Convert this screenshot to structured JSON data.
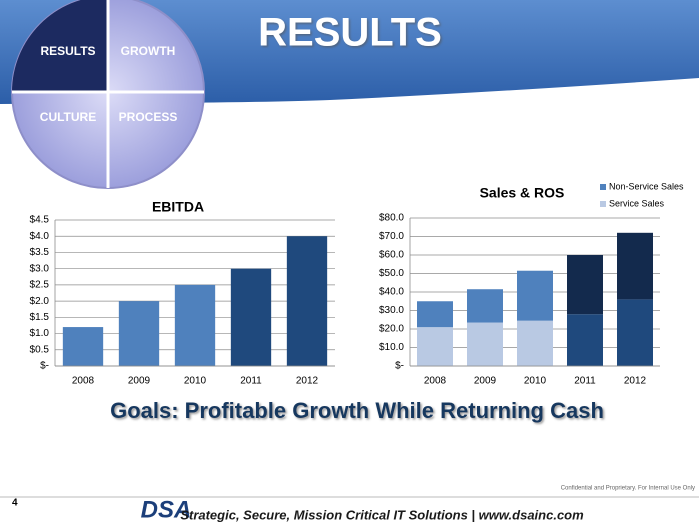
{
  "header": {
    "title": "RESULTS",
    "wheel": [
      "RESULTS",
      "GROWTH",
      "CULTURE",
      "PROCESS"
    ]
  },
  "chart_data": [
    {
      "type": "bar",
      "title": "EBITDA",
      "categories": [
        "2008",
        "2009",
        "2010",
        "2011",
        "2012"
      ],
      "values": [
        1.2,
        2.0,
        2.5,
        3.0,
        4.0
      ],
      "colors": [
        "#4f81bd",
        "#4f81bd",
        "#4f81bd",
        "#1f497d",
        "#1f497d"
      ],
      "ylim": [
        0,
        4.5
      ],
      "yticks": [
        {
          "value": 0,
          "label": "$-"
        },
        {
          "value": 0.5,
          "label": "$0.5"
        },
        {
          "value": 1,
          "label": "$1.0"
        },
        {
          "value": 1.5,
          "label": "$1.5"
        },
        {
          "value": 2,
          "label": "$2.0"
        },
        {
          "value": 2.5,
          "label": "$2.5"
        },
        {
          "value": 3,
          "label": "$3.0"
        },
        {
          "value": 3.5,
          "label": "$3.5"
        },
        {
          "value": 4,
          "label": "$4.0"
        },
        {
          "value": 4.5,
          "label": "$4.5"
        }
      ],
      "grid": true
    },
    {
      "type": "bar",
      "stacked": true,
      "title": "Sales & ROS",
      "categories": [
        "2008",
        "2009",
        "2010",
        "2011",
        "2012"
      ],
      "series": [
        {
          "name": "Service Sales",
          "color": "#b9c9e3",
          "colors": [
            "#b9c9e3",
            "#b9c9e3",
            "#b9c9e3",
            "#1f497d",
            "#1f497d"
          ],
          "values": [
            21,
            23.5,
            24.5,
            28,
            36
          ]
        },
        {
          "name": "Non-Service Sales",
          "color": "#4f81bd",
          "colors": [
            "#4f81bd",
            "#4f81bd",
            "#4f81bd",
            "#132a4d",
            "#132a4d"
          ],
          "values": [
            14,
            18,
            27,
            32,
            36
          ]
        }
      ],
      "ylim": [
        0,
        80
      ],
      "yticks": [
        {
          "value": 0,
          "label": "$-"
        },
        {
          "value": 10,
          "label": "$10.0"
        },
        {
          "value": 20,
          "label": "$20.0"
        },
        {
          "value": 30,
          "label": "$30.0"
        },
        {
          "value": 40,
          "label": "$40.0"
        },
        {
          "value": 50,
          "label": "$50.0"
        },
        {
          "value": 60,
          "label": "$60.0"
        },
        {
          "value": 70,
          "label": "$70.0"
        },
        {
          "value": 80,
          "label": "$80.0"
        }
      ],
      "grid": true,
      "legend": "top-right"
    }
  ],
  "goal": "Goals: Profitable Growth While Returning Cash",
  "footer": {
    "page": 4,
    "confidential": "Confidential and Proprietary. For Internal Use Only",
    "logo": "DSA",
    "tagline": "Strategic, Secure, Mission Critical IT Solutions  |  www.dsainc.com"
  }
}
